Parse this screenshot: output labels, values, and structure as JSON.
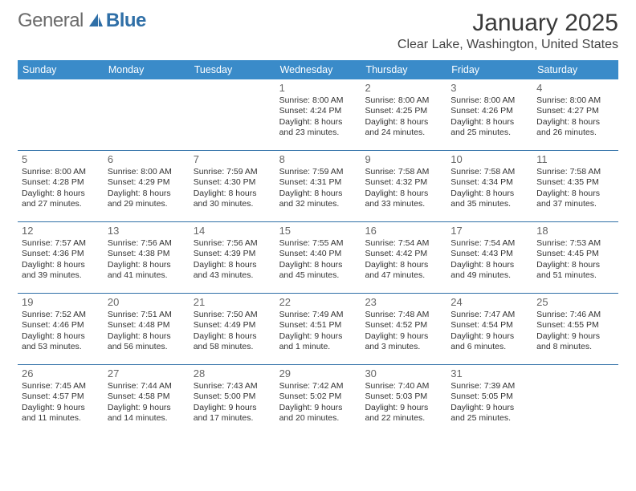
{
  "brand": {
    "part1": "General",
    "part2": "Blue"
  },
  "title": "January 2025",
  "location": "Clear Lake, Washington, United States",
  "colors": {
    "header_bar": "#3a8bc9",
    "week_divider": "#2f6fa7",
    "brand_gray": "#6b6b6b",
    "brand_blue": "#2f6fa7",
    "text": "#333333",
    "daynum": "#666666",
    "background": "#ffffff"
  },
  "weekdays": [
    "Sunday",
    "Monday",
    "Tuesday",
    "Wednesday",
    "Thursday",
    "Friday",
    "Saturday"
  ],
  "weeks": [
    [
      null,
      null,
      null,
      {
        "n": "1",
        "sr": "Sunrise: 8:00 AM",
        "ss": "Sunset: 4:24 PM",
        "d1": "Daylight: 8 hours",
        "d2": "and 23 minutes."
      },
      {
        "n": "2",
        "sr": "Sunrise: 8:00 AM",
        "ss": "Sunset: 4:25 PM",
        "d1": "Daylight: 8 hours",
        "d2": "and 24 minutes."
      },
      {
        "n": "3",
        "sr": "Sunrise: 8:00 AM",
        "ss": "Sunset: 4:26 PM",
        "d1": "Daylight: 8 hours",
        "d2": "and 25 minutes."
      },
      {
        "n": "4",
        "sr": "Sunrise: 8:00 AM",
        "ss": "Sunset: 4:27 PM",
        "d1": "Daylight: 8 hours",
        "d2": "and 26 minutes."
      }
    ],
    [
      {
        "n": "5",
        "sr": "Sunrise: 8:00 AM",
        "ss": "Sunset: 4:28 PM",
        "d1": "Daylight: 8 hours",
        "d2": "and 27 minutes."
      },
      {
        "n": "6",
        "sr": "Sunrise: 8:00 AM",
        "ss": "Sunset: 4:29 PM",
        "d1": "Daylight: 8 hours",
        "d2": "and 29 minutes."
      },
      {
        "n": "7",
        "sr": "Sunrise: 7:59 AM",
        "ss": "Sunset: 4:30 PM",
        "d1": "Daylight: 8 hours",
        "d2": "and 30 minutes."
      },
      {
        "n": "8",
        "sr": "Sunrise: 7:59 AM",
        "ss": "Sunset: 4:31 PM",
        "d1": "Daylight: 8 hours",
        "d2": "and 32 minutes."
      },
      {
        "n": "9",
        "sr": "Sunrise: 7:58 AM",
        "ss": "Sunset: 4:32 PM",
        "d1": "Daylight: 8 hours",
        "d2": "and 33 minutes."
      },
      {
        "n": "10",
        "sr": "Sunrise: 7:58 AM",
        "ss": "Sunset: 4:34 PM",
        "d1": "Daylight: 8 hours",
        "d2": "and 35 minutes."
      },
      {
        "n": "11",
        "sr": "Sunrise: 7:58 AM",
        "ss": "Sunset: 4:35 PM",
        "d1": "Daylight: 8 hours",
        "d2": "and 37 minutes."
      }
    ],
    [
      {
        "n": "12",
        "sr": "Sunrise: 7:57 AM",
        "ss": "Sunset: 4:36 PM",
        "d1": "Daylight: 8 hours",
        "d2": "and 39 minutes."
      },
      {
        "n": "13",
        "sr": "Sunrise: 7:56 AM",
        "ss": "Sunset: 4:38 PM",
        "d1": "Daylight: 8 hours",
        "d2": "and 41 minutes."
      },
      {
        "n": "14",
        "sr": "Sunrise: 7:56 AM",
        "ss": "Sunset: 4:39 PM",
        "d1": "Daylight: 8 hours",
        "d2": "and 43 minutes."
      },
      {
        "n": "15",
        "sr": "Sunrise: 7:55 AM",
        "ss": "Sunset: 4:40 PM",
        "d1": "Daylight: 8 hours",
        "d2": "and 45 minutes."
      },
      {
        "n": "16",
        "sr": "Sunrise: 7:54 AM",
        "ss": "Sunset: 4:42 PM",
        "d1": "Daylight: 8 hours",
        "d2": "and 47 minutes."
      },
      {
        "n": "17",
        "sr": "Sunrise: 7:54 AM",
        "ss": "Sunset: 4:43 PM",
        "d1": "Daylight: 8 hours",
        "d2": "and 49 minutes."
      },
      {
        "n": "18",
        "sr": "Sunrise: 7:53 AM",
        "ss": "Sunset: 4:45 PM",
        "d1": "Daylight: 8 hours",
        "d2": "and 51 minutes."
      }
    ],
    [
      {
        "n": "19",
        "sr": "Sunrise: 7:52 AM",
        "ss": "Sunset: 4:46 PM",
        "d1": "Daylight: 8 hours",
        "d2": "and 53 minutes."
      },
      {
        "n": "20",
        "sr": "Sunrise: 7:51 AM",
        "ss": "Sunset: 4:48 PM",
        "d1": "Daylight: 8 hours",
        "d2": "and 56 minutes."
      },
      {
        "n": "21",
        "sr": "Sunrise: 7:50 AM",
        "ss": "Sunset: 4:49 PM",
        "d1": "Daylight: 8 hours",
        "d2": "and 58 minutes."
      },
      {
        "n": "22",
        "sr": "Sunrise: 7:49 AM",
        "ss": "Sunset: 4:51 PM",
        "d1": "Daylight: 9 hours",
        "d2": "and 1 minute."
      },
      {
        "n": "23",
        "sr": "Sunrise: 7:48 AM",
        "ss": "Sunset: 4:52 PM",
        "d1": "Daylight: 9 hours",
        "d2": "and 3 minutes."
      },
      {
        "n": "24",
        "sr": "Sunrise: 7:47 AM",
        "ss": "Sunset: 4:54 PM",
        "d1": "Daylight: 9 hours",
        "d2": "and 6 minutes."
      },
      {
        "n": "25",
        "sr": "Sunrise: 7:46 AM",
        "ss": "Sunset: 4:55 PM",
        "d1": "Daylight: 9 hours",
        "d2": "and 8 minutes."
      }
    ],
    [
      {
        "n": "26",
        "sr": "Sunrise: 7:45 AM",
        "ss": "Sunset: 4:57 PM",
        "d1": "Daylight: 9 hours",
        "d2": "and 11 minutes."
      },
      {
        "n": "27",
        "sr": "Sunrise: 7:44 AM",
        "ss": "Sunset: 4:58 PM",
        "d1": "Daylight: 9 hours",
        "d2": "and 14 minutes."
      },
      {
        "n": "28",
        "sr": "Sunrise: 7:43 AM",
        "ss": "Sunset: 5:00 PM",
        "d1": "Daylight: 9 hours",
        "d2": "and 17 minutes."
      },
      {
        "n": "29",
        "sr": "Sunrise: 7:42 AM",
        "ss": "Sunset: 5:02 PM",
        "d1": "Daylight: 9 hours",
        "d2": "and 20 minutes."
      },
      {
        "n": "30",
        "sr": "Sunrise: 7:40 AM",
        "ss": "Sunset: 5:03 PM",
        "d1": "Daylight: 9 hours",
        "d2": "and 22 minutes."
      },
      {
        "n": "31",
        "sr": "Sunrise: 7:39 AM",
        "ss": "Sunset: 5:05 PM",
        "d1": "Daylight: 9 hours",
        "d2": "and 25 minutes."
      },
      null
    ]
  ]
}
